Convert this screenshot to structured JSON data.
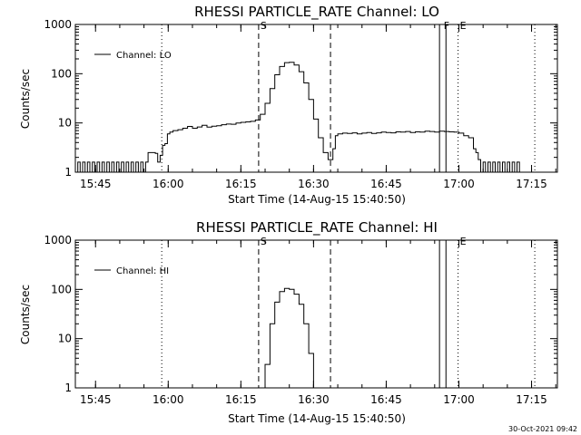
{
  "chart_data": [
    {
      "type": "line",
      "title": "RHESSI PARTICLE_RATE Channel: LO",
      "xlabel": "Start Time (14-Aug-15 15:40:50)",
      "ylabel": "Counts/sec",
      "yscale": "log",
      "xlim": [
        "15:40:50",
        "17:20:20"
      ],
      "ylim": [
        1,
        1000
      ],
      "x_ticks": [
        "15:45",
        "16:00",
        "16:15",
        "16:30",
        "16:45",
        "17:00",
        "17:15"
      ],
      "y_ticks": [
        "1",
        "10",
        "100",
        "1000"
      ],
      "grid": false,
      "legend_position": "top-left",
      "series": [
        {
          "name": "Channel: LO",
          "points": [
            [
              "15:40:50",
              1.0
            ],
            [
              "15:41:20",
              1.6
            ],
            [
              "15:41:50",
              1.0
            ],
            [
              "15:42:20",
              1.6
            ],
            [
              "15:42:50",
              1.0
            ],
            [
              "15:43:20",
              1.6
            ],
            [
              "15:43:50",
              1.0
            ],
            [
              "15:44:20",
              1.6
            ],
            [
              "15:44:50",
              1.0
            ],
            [
              "15:45:20",
              1.6
            ],
            [
              "15:45:50",
              1.0
            ],
            [
              "15:46:20",
              1.6
            ],
            [
              "15:46:50",
              1.0
            ],
            [
              "15:47:20",
              1.6
            ],
            [
              "15:47:50",
              1.0
            ],
            [
              "15:48:20",
              1.6
            ],
            [
              "15:48:50",
              1.0
            ],
            [
              "15:49:20",
              1.6
            ],
            [
              "15:49:50",
              1.0
            ],
            [
              "15:50:20",
              1.6
            ],
            [
              "15:50:50",
              1.0
            ],
            [
              "15:51:20",
              1.6
            ],
            [
              "15:51:50",
              1.0
            ],
            [
              "15:52:20",
              1.6
            ],
            [
              "15:52:50",
              1.0
            ],
            [
              "15:53:20",
              1.6
            ],
            [
              "15:53:50",
              1.0
            ],
            [
              "15:54:20",
              1.6
            ],
            [
              "15:54:50",
              1.0
            ],
            [
              "15:55:20",
              1.6
            ],
            [
              "15:55:50",
              2.5
            ],
            [
              "15:56:20",
              2.5
            ],
            [
              "15:56:50",
              2.5
            ],
            [
              "15:57:20",
              2.4
            ],
            [
              "15:57:50",
              1.6
            ],
            [
              "15:58:20",
              2.2
            ],
            [
              "15:58:50",
              3.5
            ],
            [
              "15:59:20",
              3.8
            ],
            [
              "15:59:50",
              6.0
            ],
            [
              "16:00:20",
              6.5
            ],
            [
              "16:01:00",
              7.0
            ],
            [
              "16:02:00",
              7.3
            ],
            [
              "16:03:00",
              7.8
            ],
            [
              "16:04:00",
              8.5
            ],
            [
              "16:05:00",
              7.8
            ],
            [
              "16:06:00",
              8.3
            ],
            [
              "16:07:00",
              9.0
            ],
            [
              "16:08:00",
              8.2
            ],
            [
              "16:09:00",
              8.6
            ],
            [
              "16:10:00",
              8.8
            ],
            [
              "16:11:00",
              9.2
            ],
            [
              "16:12:00",
              9.5
            ],
            [
              "16:13:00",
              9.4
            ],
            [
              "16:14:00",
              10.0
            ],
            [
              "16:15:00",
              10.3
            ],
            [
              "16:16:00",
              10.5
            ],
            [
              "16:17:00",
              10.8
            ],
            [
              "16:18:00",
              11.5
            ],
            [
              "16:19:00",
              15.0
            ],
            [
              "16:20:00",
              25.0
            ],
            [
              "16:21:00",
              50.0
            ],
            [
              "16:22:00",
              95.0
            ],
            [
              "16:23:00",
              140.0
            ],
            [
              "16:24:00",
              168.0
            ],
            [
              "16:25:00",
              170.0
            ],
            [
              "16:26:00",
              150.0
            ],
            [
              "16:27:00",
              110.0
            ],
            [
              "16:28:00",
              65.0
            ],
            [
              "16:29:00",
              30.0
            ],
            [
              "16:30:00",
              12.0
            ],
            [
              "16:31:00",
              5.0
            ],
            [
              "16:32:00",
              2.5
            ],
            [
              "16:33:00",
              1.8
            ],
            [
              "16:34:00",
              3.0
            ],
            [
              "16:34:30",
              5.5
            ],
            [
              "16:35:00",
              6.0
            ],
            [
              "16:36:00",
              6.2
            ],
            [
              "16:37:00",
              6.1
            ],
            [
              "16:38:00",
              6.3
            ],
            [
              "16:39:00",
              6.0
            ],
            [
              "16:40:00",
              6.2
            ],
            [
              "16:41:00",
              6.4
            ],
            [
              "16:42:00",
              6.1
            ],
            [
              "16:43:00",
              6.3
            ],
            [
              "16:44:00",
              6.5
            ],
            [
              "16:45:00",
              6.4
            ],
            [
              "16:46:00",
              6.3
            ],
            [
              "16:47:00",
              6.6
            ],
            [
              "16:48:00",
              6.5
            ],
            [
              "16:49:00",
              6.7
            ],
            [
              "16:50:00",
              6.4
            ],
            [
              "16:51:00",
              6.6
            ],
            [
              "16:52:00",
              6.5
            ],
            [
              "16:53:00",
              6.8
            ],
            [
              "16:54:00",
              6.7
            ],
            [
              "16:55:00",
              6.5
            ],
            [
              "16:56:00",
              6.8
            ],
            [
              "16:57:00",
              6.7
            ],
            [
              "16:58:00",
              6.6
            ],
            [
              "16:59:00",
              6.5
            ],
            [
              "17:00:00",
              6.2
            ],
            [
              "17:01:00",
              5.5
            ],
            [
              "17:02:00",
              5.0
            ],
            [
              "17:03:00",
              3.0
            ],
            [
              "17:03:30",
              2.5
            ],
            [
              "17:04:00",
              1.8
            ],
            [
              "17:04:30",
              1.0
            ],
            [
              "17:05:00",
              1.6
            ],
            [
              "17:05:30",
              1.0
            ],
            [
              "17:06:00",
              1.6
            ],
            [
              "17:06:30",
              1.0
            ],
            [
              "17:07:00",
              1.6
            ],
            [
              "17:07:30",
              1.0
            ],
            [
              "17:08:00",
              1.6
            ],
            [
              "17:08:30",
              1.0
            ],
            [
              "17:09:00",
              1.6
            ],
            [
              "17:09:30",
              1.0
            ],
            [
              "17:10:00",
              1.6
            ],
            [
              "17:10:30",
              1.0
            ],
            [
              "17:11:00",
              1.6
            ],
            [
              "17:11:30",
              1.0
            ],
            [
              "17:12:00",
              1.6
            ],
            [
              "17:12:30",
              1.0
            ]
          ]
        }
      ],
      "markers": [
        {
          "label": "S",
          "time": "16:18:40"
        },
        {
          "label": "F",
          "time": "16:56:30"
        },
        {
          "label": "E",
          "time": "16:59:50"
        }
      ],
      "dashed_lines": [
        "16:18:40",
        "16:33:30"
      ],
      "dotted_lines": [
        "15:58:40",
        "16:59:50",
        "17:15:40"
      ],
      "solid_lines": [
        "16:56:00",
        "16:57:20"
      ]
    },
    {
      "type": "line",
      "title": "RHESSI PARTICLE_RATE Channel: HI",
      "xlabel": "Start Time (14-Aug-15 15:40:50)",
      "ylabel": "Counts/sec",
      "yscale": "log",
      "xlim": [
        "15:40:50",
        "17:20:20"
      ],
      "ylim": [
        1,
        1000
      ],
      "x_ticks": [
        "15:45",
        "16:00",
        "16:15",
        "16:30",
        "16:45",
        "17:00",
        "17:15"
      ],
      "y_ticks": [
        "1",
        "10",
        "100",
        "1000"
      ],
      "grid": false,
      "legend_position": "top-left",
      "series": [
        {
          "name": "Channel: HI",
          "points": [
            [
              "16:19:30",
              1.0
            ],
            [
              "16:20:00",
              3.0
            ],
            [
              "16:21:00",
              20.0
            ],
            [
              "16:22:00",
              55.0
            ],
            [
              "16:23:00",
              90.0
            ],
            [
              "16:24:00",
              105.0
            ],
            [
              "16:25:00",
              100.0
            ],
            [
              "16:26:00",
              80.0
            ],
            [
              "16:27:00",
              50.0
            ],
            [
              "16:28:00",
              20.0
            ],
            [
              "16:29:00",
              5.0
            ],
            [
              "16:30:00",
              1.0
            ]
          ]
        }
      ],
      "markers": [
        {
          "label": "S",
          "time": "16:18:40"
        },
        {
          "label": "E",
          "time": "16:59:50"
        }
      ],
      "dashed_lines": [
        "16:18:40",
        "16:33:30"
      ],
      "dotted_lines": [
        "15:58:40",
        "16:59:50",
        "17:15:40"
      ],
      "solid_lines": [
        "16:56:00",
        "16:57:20"
      ]
    }
  ],
  "footer": {
    "timestamp": "30-Oct-2021 09:42"
  }
}
